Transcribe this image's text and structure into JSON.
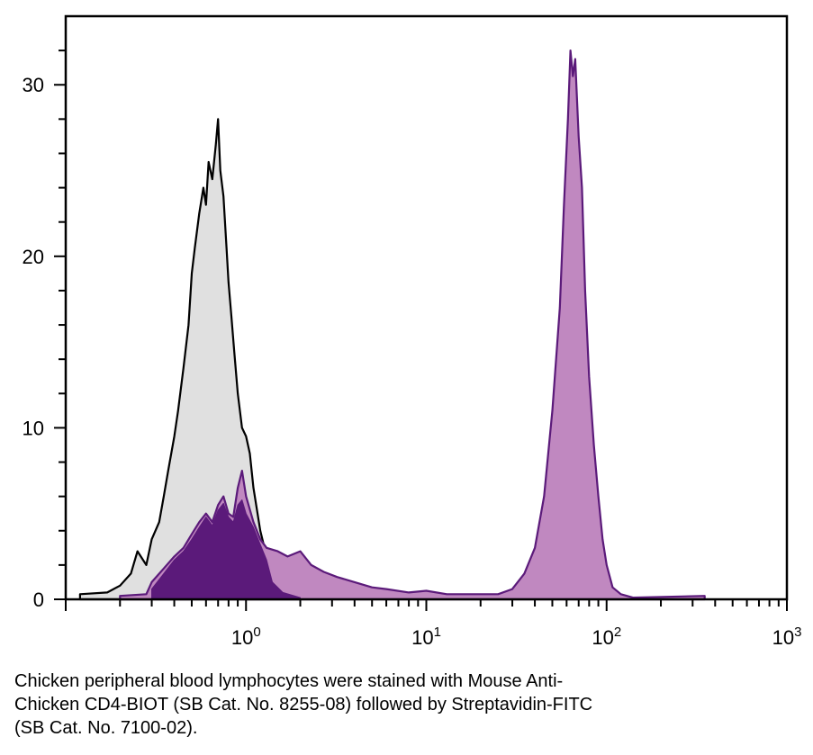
{
  "chart_data": {
    "type": "area",
    "x_scale": "log",
    "xlim": [
      0.1,
      1000
    ],
    "ylim": [
      0,
      34
    ],
    "y_ticks": [
      0,
      10,
      20,
      30
    ],
    "x_tick_labels": [
      {
        "value": 1,
        "base": "10",
        "exp": "0"
      },
      {
        "value": 10,
        "base": "10",
        "exp": "1"
      },
      {
        "value": 100,
        "base": "10",
        "exp": "2"
      },
      {
        "value": 1000,
        "base": "10",
        "exp": "3"
      }
    ],
    "grid": false,
    "series": [
      {
        "role": "isotype-control",
        "fill": "#e0e0e0",
        "stroke": "#000000",
        "points": [
          [
            0.12,
            0.3
          ],
          [
            0.17,
            0.4
          ],
          [
            0.2,
            0.8
          ],
          [
            0.23,
            1.5
          ],
          [
            0.25,
            2.8
          ],
          [
            0.28,
            2.0
          ],
          [
            0.3,
            3.5
          ],
          [
            0.33,
            4.5
          ],
          [
            0.35,
            6.0
          ],
          [
            0.37,
            7.5
          ],
          [
            0.4,
            9.5
          ],
          [
            0.42,
            11.0
          ],
          [
            0.45,
            13.5
          ],
          [
            0.48,
            16.0
          ],
          [
            0.5,
            19.0
          ],
          [
            0.52,
            20.5
          ],
          [
            0.55,
            22.5
          ],
          [
            0.58,
            24.0
          ],
          [
            0.6,
            23.0
          ],
          [
            0.62,
            25.5
          ],
          [
            0.65,
            24.5
          ],
          [
            0.68,
            26.5
          ],
          [
            0.7,
            28.0
          ],
          [
            0.72,
            25.0
          ],
          [
            0.75,
            23.5
          ],
          [
            0.78,
            20.5
          ],
          [
            0.8,
            18.5
          ],
          [
            0.83,
            16.5
          ],
          [
            0.86,
            14.5
          ],
          [
            0.9,
            12.0
          ],
          [
            0.95,
            10.0
          ],
          [
            1.0,
            9.5
          ],
          [
            1.05,
            8.5
          ],
          [
            1.1,
            6.5
          ],
          [
            1.2,
            4.0
          ],
          [
            1.3,
            2.5
          ],
          [
            1.4,
            1.0
          ],
          [
            1.6,
            0.4
          ],
          [
            2.0,
            0.1
          ]
        ]
      },
      {
        "role": "cd4-stain",
        "fill": "#c088c0",
        "stroke": "#5b1a7a",
        "points": [
          [
            0.2,
            0.2
          ],
          [
            0.28,
            0.3
          ],
          [
            0.3,
            1.0
          ],
          [
            0.35,
            1.8
          ],
          [
            0.4,
            2.5
          ],
          [
            0.45,
            3.0
          ],
          [
            0.5,
            3.8
          ],
          [
            0.55,
            4.5
          ],
          [
            0.6,
            5.0
          ],
          [
            0.65,
            4.5
          ],
          [
            0.7,
            5.5
          ],
          [
            0.75,
            6.0
          ],
          [
            0.8,
            5.0
          ],
          [
            0.85,
            4.8
          ],
          [
            0.9,
            6.5
          ],
          [
            0.95,
            7.5
          ],
          [
            1.0,
            6.0
          ],
          [
            1.1,
            4.5
          ],
          [
            1.2,
            3.5
          ],
          [
            1.3,
            3.0
          ],
          [
            1.5,
            2.8
          ],
          [
            1.7,
            2.5
          ],
          [
            2.0,
            2.8
          ],
          [
            2.3,
            2.0
          ],
          [
            2.7,
            1.6
          ],
          [
            3.2,
            1.3
          ],
          [
            4.0,
            1.0
          ],
          [
            5.0,
            0.7
          ],
          [
            6.0,
            0.6
          ],
          [
            8.0,
            0.4
          ],
          [
            10.0,
            0.5
          ],
          [
            13.0,
            0.3
          ],
          [
            18.0,
            0.3
          ],
          [
            25.0,
            0.3
          ],
          [
            30.0,
            0.6
          ],
          [
            35.0,
            1.5
          ],
          [
            40.0,
            3.0
          ],
          [
            45.0,
            6.0
          ],
          [
            50.0,
            11.0
          ],
          [
            55.0,
            17.0
          ],
          [
            58.0,
            23.0
          ],
          [
            61.0,
            28.0
          ],
          [
            63.0,
            32.0
          ],
          [
            65.0,
            30.5
          ],
          [
            67.0,
            31.5
          ],
          [
            70.0,
            27.0
          ],
          [
            73.0,
            24.0
          ],
          [
            76.0,
            18.0
          ],
          [
            80.0,
            13.0
          ],
          [
            85.0,
            9.0
          ],
          [
            90.0,
            6.0
          ],
          [
            95.0,
            3.5
          ],
          [
            100.0,
            2.0
          ],
          [
            108.0,
            0.7
          ],
          [
            120.0,
            0.3
          ],
          [
            140.0,
            0.1
          ],
          [
            350.0,
            0.2
          ]
        ]
      },
      {
        "role": "overlap",
        "fill": "#5b1a7a",
        "stroke": "#5b1a7a",
        "points": [
          [
            0.3,
            0.6
          ],
          [
            0.35,
            1.5
          ],
          [
            0.4,
            2.3
          ],
          [
            0.45,
            2.8
          ],
          [
            0.5,
            3.5
          ],
          [
            0.55,
            4.2
          ],
          [
            0.6,
            4.8
          ],
          [
            0.65,
            4.3
          ],
          [
            0.7,
            5.2
          ],
          [
            0.75,
            5.6
          ],
          [
            0.8,
            4.8
          ],
          [
            0.85,
            4.5
          ],
          [
            0.9,
            5.5
          ],
          [
            0.95,
            5.8
          ],
          [
            1.0,
            5.0
          ],
          [
            1.1,
            4.2
          ],
          [
            1.2,
            3.2
          ],
          [
            1.3,
            2.3
          ],
          [
            1.4,
            1.0
          ],
          [
            1.6,
            0.4
          ],
          [
            2.0,
            0.1
          ]
        ]
      }
    ]
  },
  "caption": "Chicken peripheral blood lymphocytes were stained with Mouse Anti-\nChicken CD4-BIOT (SB Cat. No. 8255-08) followed by Streptavidin-FITC\n(SB Cat. No. 7100-02)."
}
